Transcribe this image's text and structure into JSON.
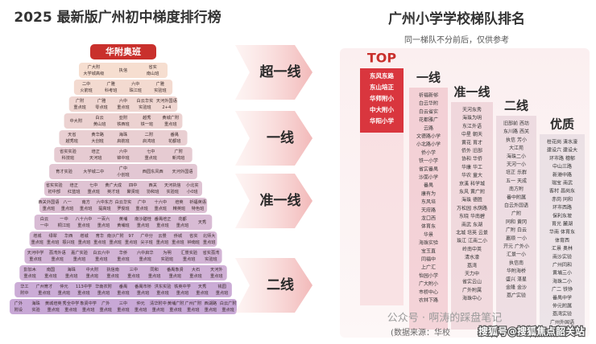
{
  "left": {
    "title": "2025 最新版广州初中梯度排行榜",
    "pyramid": {
      "top": "华附奥班",
      "rows": [
        [
          [
            "广大附",
            "大学城高级"
          ],
          [
            "执信"
          ],
          [
            "省实",
            "南山班"
          ]
        ],
        [
          [
            "二中",
            "火箭班"
          ],
          [
            "广雅",
            "科考班"
          ],
          [
            "六中",
            "珠江班"
          ],
          [
            "广雅",
            "实验班"
          ]
        ],
        [
          [
            "广附",
            "重点班"
          ],
          [
            "广雅",
            "零点班"
          ],
          [
            "六中",
            "重点班"
          ],
          [
            "白云华实",
            "实验班"
          ],
          [
            "天河外国语",
            "2+4"
          ]
        ],
        [
          [
            "中大附"
          ],
          [
            "白云",
            "黄山班"
          ],
          [
            "亚附",
            "铁西班"
          ],
          [
            "越秀",
            "铁一班"
          ],
          [
            "黄城广附",
            "重点班"
          ]
        ],
        [
          [
            "天省",
            "越秀班"
          ],
          [
            "黄华路",
            "大创班"
          ],
          [
            "海珠",
            "启航班"
          ],
          [
            "二附",
            "启鸿班"
          ],
          [
            "番禺",
            "花都班"
          ]
        ],
        [
          [
            "省实实验",
            "科技班"
          ],
          [
            "培正",
            "天河班"
          ],
          [
            "六中",
            "锦中班"
          ],
          [
            "七中",
            "重点班"
          ],
          [
            "广附",
            "新鸿班"
          ]
        ],
        [
          [
            "育才实验"
          ],
          [
            "大学城二中"
          ],
          [
            "广中",
            "小创班"
          ],
          [
            "西园东风西"
          ],
          [
            "天河外国语"
          ]
        ],
        [
          [
            "省实实验",
            "初中部"
          ],
          [
            "培正",
            "红蓝班"
          ],
          [
            "七中",
            "重点班"
          ],
          [
            "黄广大成",
            "英才班"
          ],
          [
            "四中",
            "聚贤班"
          ],
          [
            "西关",
            "协和班"
          ],
          [
            "天河执信",
            "实验班"
          ],
          [
            "小北实",
            "小0班"
          ]
        ],
        [
          [
            "西关外国语",
            "重点班"
          ],
          [
            "八一",
            "重点班"
          ],
          [
            "南方",
            "重点班"
          ],
          [
            "六中东方",
            "提高班"
          ],
          [
            "白云华实",
            "罗俊班"
          ],
          [
            "广中",
            "重点班"
          ],
          [
            "十六中",
            "重点班"
          ],
          [
            "培英",
            "精英班"
          ],
          [
            "祈福英语",
            "特色班"
          ]
        ],
        [
          [
            "白云",
            "一中"
          ],
          [
            "一中",
            "桐江班"
          ],
          [
            "八十六中",
            "重点班"
          ],
          [
            "一百六",
            "重点班"
          ],
          [
            "黄埔",
            "黄埔班"
          ],
          [
            "南沙碧桂",
            "重点班"
          ],
          [
            "番禺培正",
            "重点班"
          ],
          [
            "花都",
            "重点班"
          ],
          [
            "天秀"
          ]
        ],
        [
          [
            "增城",
            "重点班"
          ],
          [
            "绿翠",
            "重点班"
          ],
          [
            "华西",
            "振兴班"
          ],
          [
            "增城",
            "重点班"
          ],
          [
            "育华",
            "重点班"
          ],
          [
            "南沙广附",
            "重点班"
          ],
          [
            "97",
            "重点班"
          ],
          [
            "广中分",
            "尖子班"
          ],
          [
            "云景",
            "重点班"
          ],
          [
            "侨城",
            "重点班"
          ],
          [
            "省实",
            "钟南班"
          ],
          [
            "北师大",
            "重点班"
          ]
        ],
        [
          [
            "天河中学",
            "重点班"
          ],
          [
            "荔湾外语",
            "重点班"
          ],
          [
            "嘉广实验",
            "重点班"
          ],
          [
            "白云六中",
            "重点班"
          ],
          [
            "华侨",
            "重点班"
          ],
          [
            "六中启华",
            "重点班"
          ],
          [
            "为明",
            "实验班"
          ],
          [
            "汇景实验",
            "重点班"
          ],
          [
            "省实荔湾",
            "实验班"
          ]
        ],
        [
          [
            "彭加木",
            "重点班"
          ],
          [
            "南国",
            "重点班"
          ],
          [
            "海珠",
            "重点班"
          ],
          [
            "中大附",
            "重点班"
          ],
          [
            "执信南",
            "重点班"
          ],
          [
            "三中",
            "重点班"
          ],
          [
            "同和",
            "重点班"
          ],
          [
            "番禺象贤",
            "重点班"
          ],
          [
            "大石",
            "重点班"
          ],
          [
            "天河外",
            "重点班"
          ]
        ],
        [
          [
            "华工",
            "附中"
          ],
          [
            "广州育才",
            "重点班"
          ],
          [
            "仲元",
            "重点班"
          ],
          [
            "113中学",
            "重点班"
          ],
          [
            "华南农附",
            "重点班"
          ],
          [
            "番禺",
            "重点班"
          ],
          [
            "番禺市桥",
            "重点班"
          ],
          [
            "洪东实验",
            "重点班"
          ],
          [
            "铁英中学",
            "重点班"
          ],
          [
            "天秀",
            "重点班"
          ],
          [
            "钱园",
            "重点班"
          ]
        ],
        [
          [
            "广外",
            "附设"
          ],
          [
            "海珠",
            "实验"
          ],
          [
            "黄城培英",
            "重点班"
          ],
          [
            "秀全中学",
            "重点班"
          ],
          [
            "象贤中学",
            "重点班"
          ],
          [
            "广外",
            "重点班"
          ],
          [
            "三中",
            "重点班"
          ],
          [
            "仲元",
            "重点班"
          ],
          [
            "清华附中",
            "重点班"
          ],
          [
            "黄埔广附",
            "重点班"
          ],
          [
            "广州广附",
            "重点班"
          ],
          [
            "西湖路",
            "重点班"
          ],
          [
            "白云广附",
            "重点班"
          ]
        ]
      ]
    }
  },
  "tiers": [
    "超一线",
    "一线",
    "准一线",
    "二线"
  ],
  "right": {
    "title": "广州小学学校梯队排名",
    "subtitle": "同一梯队不分前后，仅供参考",
    "columns": [
      {
        "name": "TOP",
        "color": "#d9363e",
        "schools": [
          "东风东路",
          "东山培正",
          "华师附小",
          "中大附小",
          "华阳小学"
        ]
      },
      {
        "name": "一线",
        "color": "#e9a9b4",
        "schools": [
          "祈福新邨",
          "白云华附",
          "白云省实",
          "花都雅广",
          "云路",
          "文德路小学",
          "小北路小学",
          "侨小学",
          "铁一小学",
          "省实番禺",
          "沙面小学",
          "番禺",
          "康有为",
          "东风培",
          "天府路",
          "龙口西",
          "体育东",
          "华景",
          "海珠实验",
          "宝玉直",
          "同福中",
          "上广汇",
          "怡园小学",
          "广大附小",
          "市桥中心",
          "农林下路"
        ]
      },
      {
        "name": "准一线",
        "color": "#e3b8c2",
        "schools": [
          "天河东秀",
          "海珠为明",
          "东江外语",
          "中星 朝天",
          "黄花 育才",
          "侨外 旧部",
          "协和 华侨",
          "华康 华工",
          "华农 童大",
          "京溪 科学城",
          "东风 黄广附",
          "海珠 德胜",
          "万松园 水荫路",
          "东晓 华南碧",
          "南武 东湖",
          "北城 培英 云景",
          "珠江 江南二小",
          "岭南中英",
          "清水濠",
          "荔湾",
          "天力中",
          "省实云山",
          "广外附属",
          "海珠中心"
        ]
      },
      {
        "name": "二线",
        "color": "#dcc2cc",
        "schools": [
          "旧部前 西坊",
          "东川路 西关",
          "执信 芳小",
          "大江苑",
          "海珠二小",
          "天河一小",
          "培正 乐群",
          "五一 天成",
          "南方附",
          "番中附属",
          "白云外国语",
          "广附",
          "同和 黄冈",
          "广附 白云",
          "嘉顺 一小",
          "开元 广外小",
          "汇景一小",
          "执信南",
          "华附海桥",
          "盛兴 湛星",
          "金隆 金沙",
          "荔广实验"
        ]
      },
      {
        "name": "优质",
        "color": "#d8ccd4",
        "schools": [
          "桂花岗 清水濠",
          "建设六 建设大",
          "环市路 穗郁",
          "中山三路",
          "新港中路",
          "瑞宝 南武",
          "客村 昌岗东",
          "赤岗 同和",
          "环市西路",
          "保利东坡",
          "育光 麓湖",
          "华南 体育东",
          "体育西",
          "汇景 奥林",
          "南沙实验",
          "广州同和",
          "黄埔三小",
          "海珠二小",
          "广二 铁铮",
          "番禺中学",
          "仲元附属",
          "荔湾实验",
          "广州外国语"
        ]
      }
    ]
  },
  "watermarks": {
    "wechat": "公众号 · 啊涛的踩盘笔记",
    "source": "(数据来源：华校",
    "sohu": "搜狐号@搜狐焦点韶关站"
  }
}
